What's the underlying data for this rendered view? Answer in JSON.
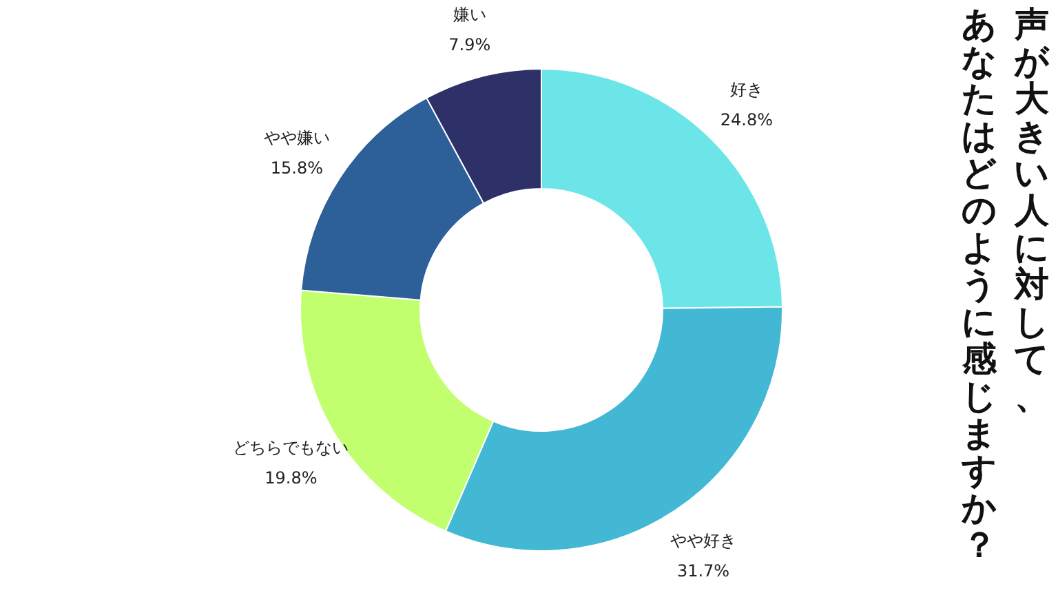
{
  "chart_data": {
    "type": "donut",
    "title": "声が大きい人に対して、あなたはどのように感じますか？",
    "categories": [
      "好き",
      "やや好き",
      "どちらでもない",
      "やや嫌い",
      "嫌い"
    ],
    "values": [
      24.8,
      31.7,
      19.8,
      15.8,
      7.9
    ],
    "value_labels": [
      "24.8%",
      "31.7%",
      "19.8%",
      "15.8%",
      "7.9%"
    ],
    "colors": [
      "#6ce5e8",
      "#42b8d5",
      "#c1ff6f",
      "#2d5f98",
      "#2e3168"
    ],
    "legend": false
  }
}
